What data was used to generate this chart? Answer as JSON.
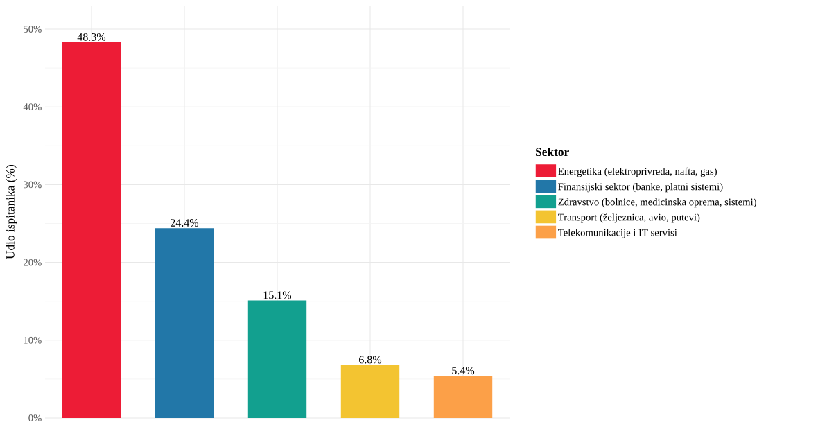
{
  "chart_data": {
    "type": "bar",
    "ylabel": "Udio ispitanika (%)",
    "legend_title": "Sektor",
    "categories": [
      null,
      null,
      null,
      null,
      null
    ],
    "series": [
      {
        "name": "Energetika (elektroprivreda, nafta, gas)",
        "color": "#ed1c36",
        "values": [
          48.3,
          null,
          null,
          null,
          null
        ],
        "value_labels": [
          "48.3%",
          null,
          null,
          null,
          null
        ]
      },
      {
        "name": "Finansijski sektor (banke, platni sistemi)",
        "color": "#2277a8",
        "values": [
          null,
          24.4,
          null,
          null,
          null
        ],
        "value_labels": [
          null,
          "24.4%",
          null,
          null,
          null
        ]
      },
      {
        "name": "Zdravstvo (bolnice, medicinska oprema, sistemi)",
        "color": "#12a08f",
        "values": [
          null,
          null,
          15.1,
          null,
          null
        ],
        "value_labels": [
          null,
          null,
          "15.1%",
          null,
          null
        ]
      },
      {
        "name": "Transport (željeznica, avio, putevi)",
        "color": "#f3c431",
        "values": [
          null,
          null,
          null,
          6.8,
          null
        ],
        "value_labels": [
          null,
          null,
          null,
          "6.8%",
          null
        ]
      },
      {
        "name": "Telekomunikacije i IT servisi",
        "color": "#fca048",
        "values": [
          null,
          null,
          null,
          null,
          5.4
        ],
        "value_labels": [
          null,
          null,
          null,
          null,
          "5.4%"
        ]
      }
    ],
    "ylim": [
      0,
      53
    ],
    "yticks": [
      {
        "value": 0,
        "label": "0%"
      },
      {
        "value": 5,
        "label": null
      },
      {
        "value": 10,
        "label": "10%"
      },
      {
        "value": 15,
        "label": null
      },
      {
        "value": 20,
        "label": "20%"
      },
      {
        "value": 25,
        "label": null
      },
      {
        "value": 30,
        "label": "30%"
      },
      {
        "value": 35,
        "label": null
      },
      {
        "value": 40,
        "label": "40%"
      },
      {
        "value": 45,
        "label": null
      },
      {
        "value": 50,
        "label": "50%"
      }
    ],
    "grid": true,
    "legend": "right",
    "tick_labels": "y"
  }
}
